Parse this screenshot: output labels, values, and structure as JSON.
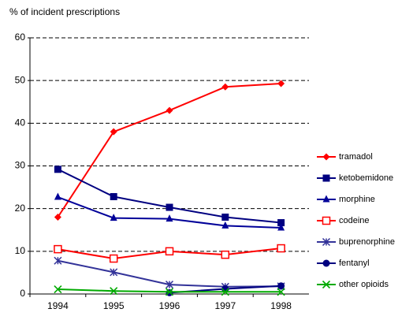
{
  "chart_data": {
    "type": "line",
    "y_axis_label": "% of incident prescriptions",
    "categories": [
      "1994",
      "1995",
      "1996",
      "1997",
      "1998"
    ],
    "series": [
      {
        "name": "tramadol",
        "color": "#ff0000",
        "marker": "diamond",
        "values": [
          18,
          38,
          43,
          48.5,
          49.3
        ]
      },
      {
        "name": "ketobemidone",
        "color": "#000080",
        "marker": "square",
        "values": [
          29.2,
          22.8,
          20.3,
          18,
          16.7
        ]
      },
      {
        "name": "morphine",
        "color": "#000099",
        "marker": "triangle",
        "values": [
          22.7,
          17.8,
          17.6,
          16,
          15.5
        ]
      },
      {
        "name": "codeine",
        "color": "#ff0000",
        "marker": "open-square",
        "values": [
          10.5,
          8.3,
          10,
          9.2,
          10.7
        ]
      },
      {
        "name": "buprenorphine",
        "color": "#333399",
        "marker": "asterisk",
        "values": [
          7.8,
          5.1,
          2.2,
          1.7,
          1.8
        ]
      },
      {
        "name": "fentanyl",
        "color": "#000080",
        "marker": "circle",
        "values": [
          null,
          null,
          0.3,
          1.2,
          1.9
        ]
      },
      {
        "name": "other opioids",
        "color": "#00aa00",
        "marker": "x",
        "values": [
          1.1,
          0.7,
          0.5,
          0.5,
          0.5
        ]
      }
    ],
    "ylim": [
      0,
      60
    ],
    "yticks": [
      0,
      10,
      20,
      30,
      40,
      50,
      60
    ],
    "grid": true,
    "legend": "right"
  }
}
